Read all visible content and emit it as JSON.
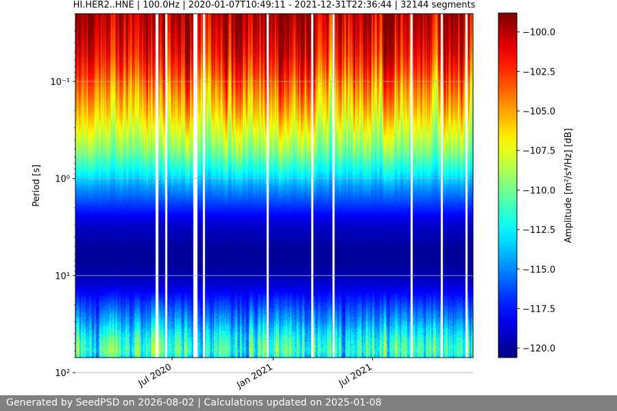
{
  "chart_data": {
    "type": "heatmap",
    "title": "HI.HER2..HNE | 100.0Hz | 2020-01-07T10:49:11 - 2021-12-31T22:36:44 | 32144 segments",
    "ylabel": "Period [s]",
    "yscale": "log",
    "ylim": [
      0.02,
      70
    ],
    "ytick_values": [
      0.1,
      1,
      10,
      100
    ],
    "ytick_labels": [
      "10⁻¹",
      "10⁰",
      "10¹",
      "10²"
    ],
    "xlim": [
      "2020-01-07",
      "2021-12-31"
    ],
    "xtick_values": [
      "2020-07-01",
      "2021-01-01",
      "2021-07-01"
    ],
    "xtick_labels": [
      "Jul 2020",
      "Jan 2021",
      "Jul 2021"
    ],
    "grid": true,
    "colormap": "jet",
    "colorbar": {
      "label": "Amplitude [m²/s⁴/Hz] [dB]",
      "vmin": -120.6,
      "vmax": -98.8,
      "tick_values": [
        -100.0,
        -102.5,
        -105.0,
        -107.5,
        -110.0,
        -112.5,
        -115.0,
        -117.5,
        -120.0
      ],
      "tick_labels": [
        "−100.0",
        "−102.5",
        "−105.0",
        "−107.5",
        "−110.0",
        "−112.5",
        "−115.0",
        "−117.5",
        "−120.0"
      ]
    },
    "profile": {
      "period_s": [
        0.02,
        0.03,
        0.05,
        0.08,
        0.12,
        0.2,
        0.3,
        0.5,
        0.8,
        1.2,
        2,
        3,
        5,
        8,
        12,
        20,
        30,
        45,
        60,
        70
      ],
      "amplitude_db": [
        -99.8,
        -100.5,
        -101.5,
        -103.0,
        -104.5,
        -106.0,
        -107.5,
        -109.5,
        -112.0,
        -114.5,
        -117.0,
        -119.0,
        -120.0,
        -120.0,
        -119.0,
        -116.5,
        -114.5,
        -112.0,
        -111.0,
        -112.5
      ]
    },
    "gaps": [
      "2020-06-02",
      "2020-06-04",
      "2020-06-20",
      "2020-08-10",
      "2020-08-12",
      "2020-08-14",
      "2020-08-27",
      "2020-12-22",
      "2021-03-13",
      "2021-04-20",
      "2021-09-10",
      "2021-11-03",
      "2021-12-18"
    ]
  },
  "footer": {
    "text": "Generated by SeedPSD on 2026-08-02 | Calculations updated on 2025-01-08"
  }
}
